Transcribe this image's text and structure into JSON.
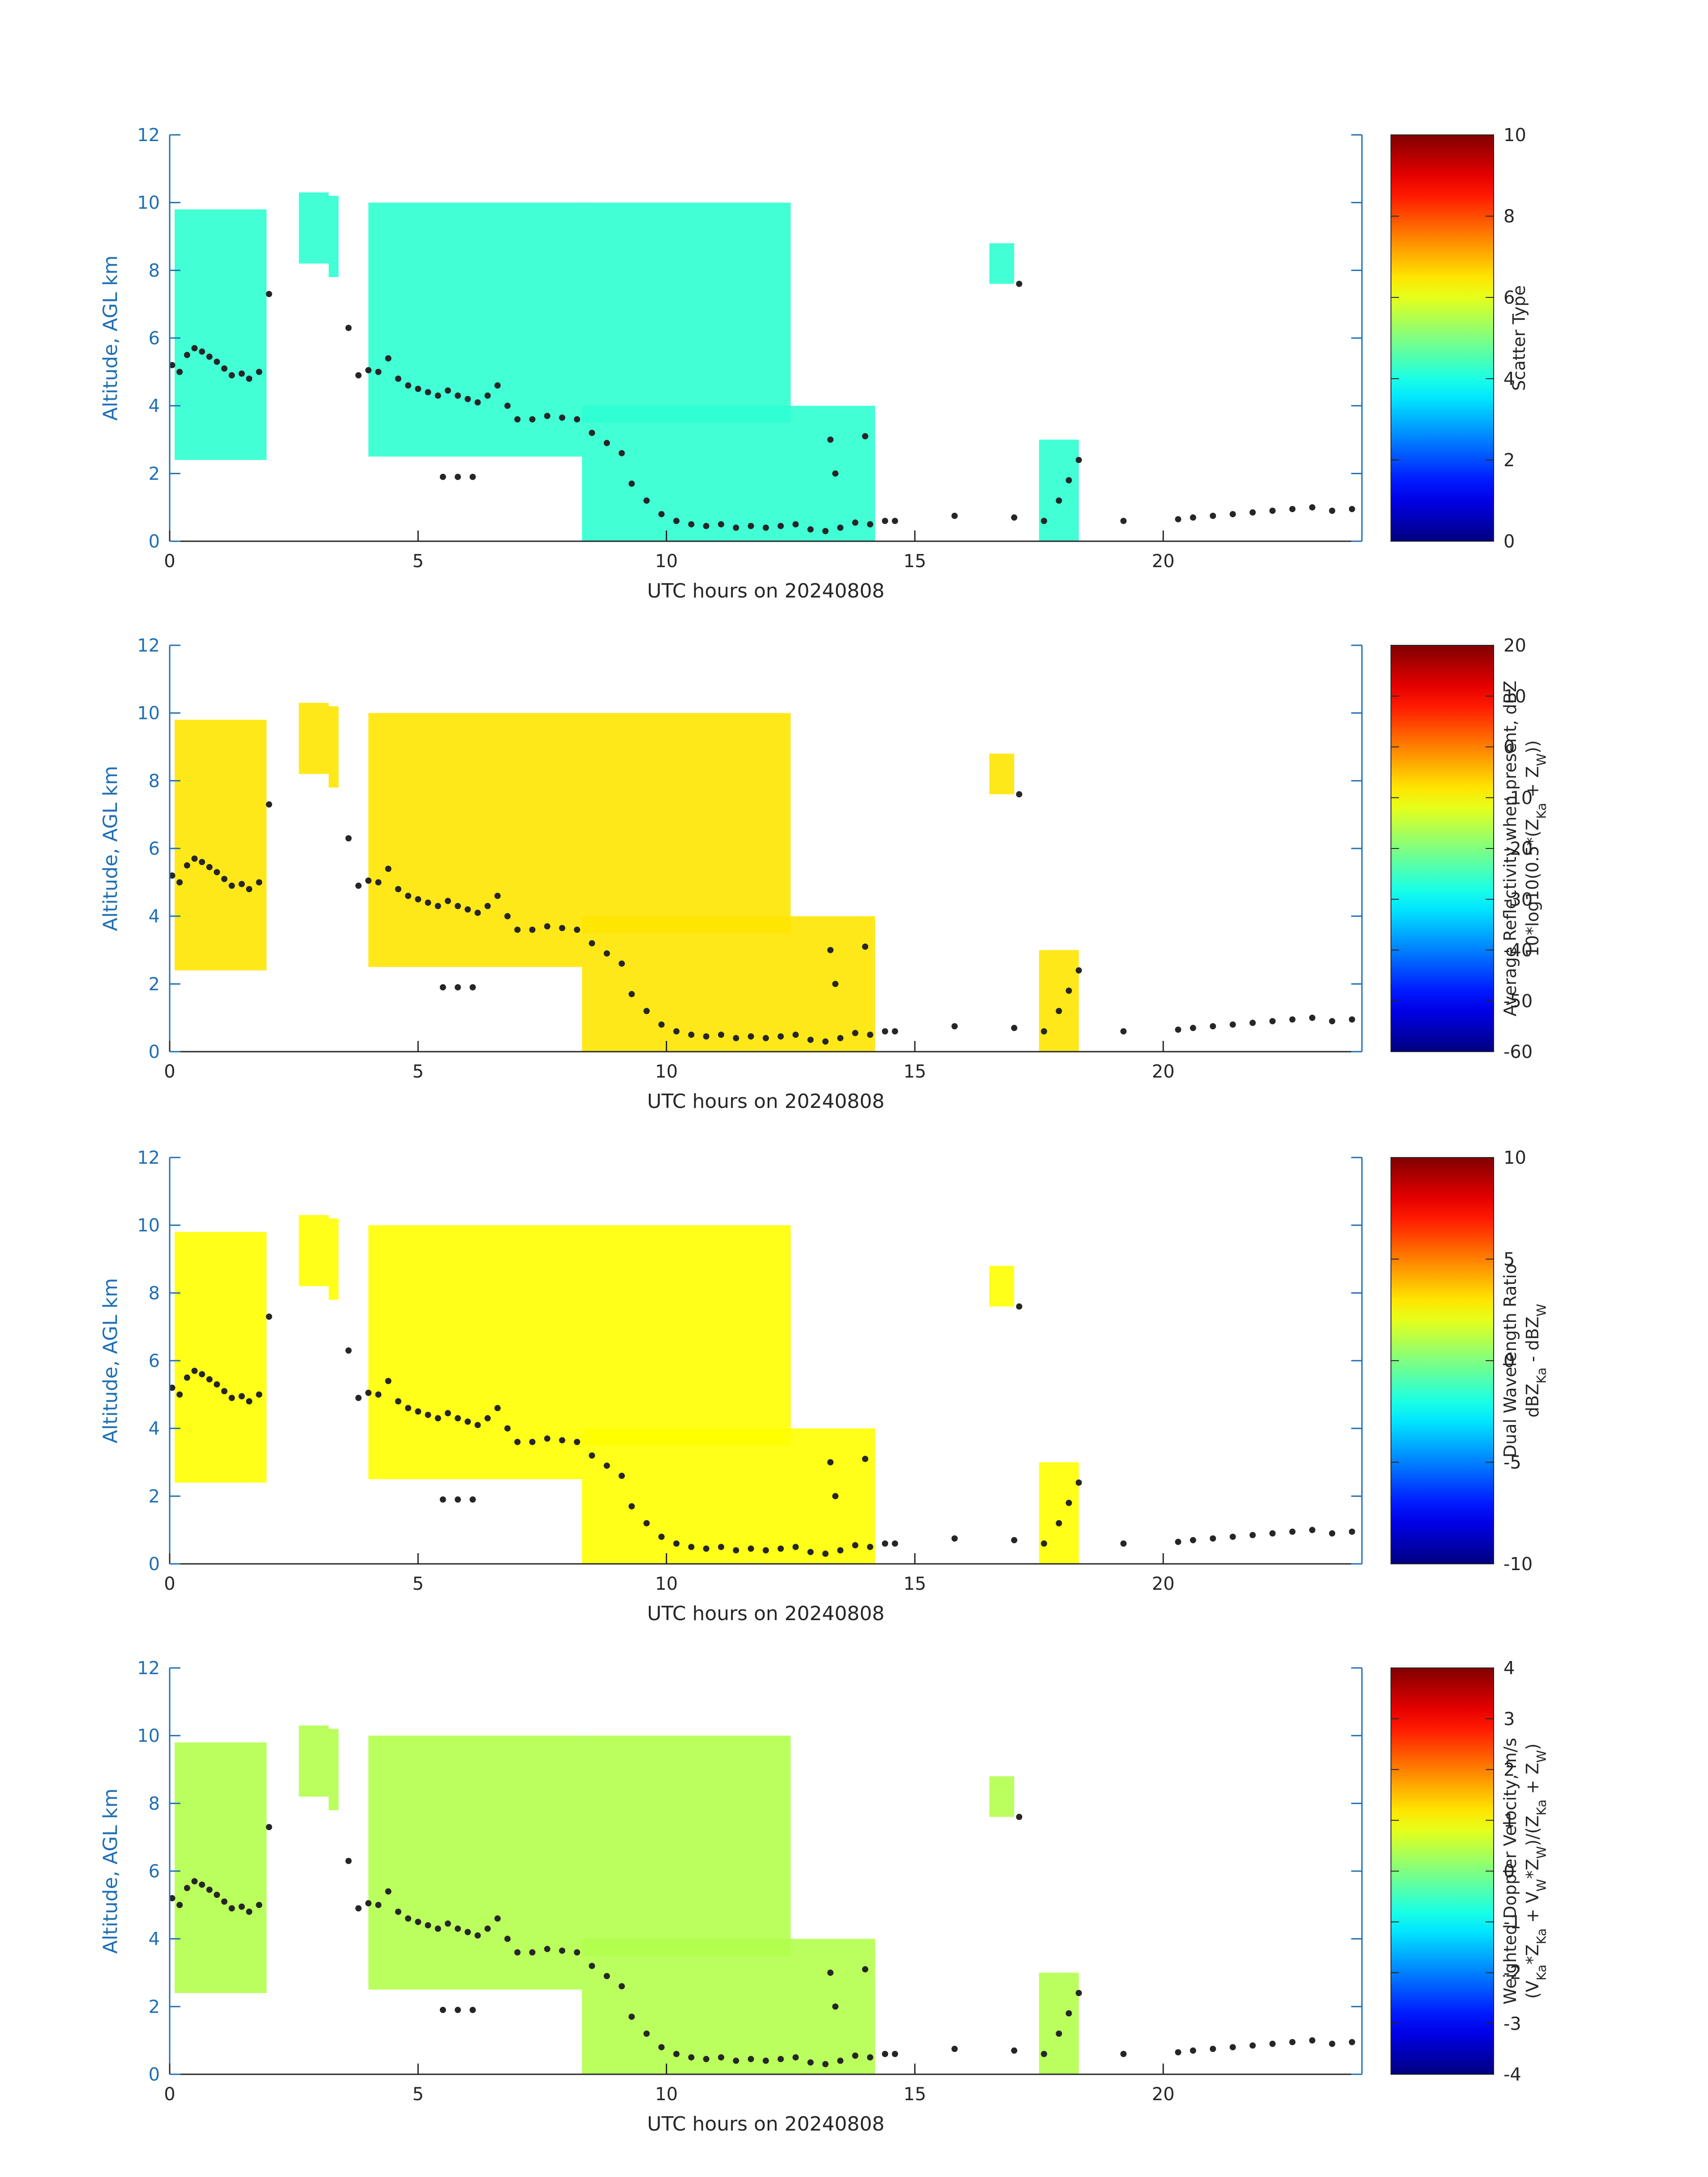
{
  "colors": {
    "axis": "#1f6fb4",
    "black": "#262626"
  },
  "chart_data": [
    {
      "type": "heatmap",
      "title": "",
      "xlabel": "UTC hours on 20240808",
      "ylabel": "Altitude, AGL km",
      "xlim": [
        0,
        24
      ],
      "ylim": [
        0,
        12
      ],
      "xticks": [
        "0",
        "5",
        "10",
        "15",
        "20"
      ],
      "yticks": [
        "0",
        "2",
        "4",
        "6",
        "8",
        "10",
        "12"
      ],
      "colorbar": {
        "label": "Scatter Type",
        "sublabel": "",
        "clim": [
          0,
          10
        ],
        "ticks": [
          "0",
          "2",
          "4",
          "6",
          "8",
          "10"
        ]
      },
      "colormap": "jet",
      "dominant_value": 4.2
    },
    {
      "type": "heatmap",
      "title": "",
      "xlabel": "UTC hours on 20240808",
      "ylabel": "Altitude, AGL km",
      "xlim": [
        0,
        24
      ],
      "ylim": [
        0,
        12
      ],
      "xticks": [
        "0",
        "5",
        "10",
        "15",
        "20"
      ],
      "yticks": [
        "0",
        "2",
        "4",
        "6",
        "8",
        "10",
        "12"
      ],
      "colorbar": {
        "label": "Average Reflectivity when present, dBZ",
        "sublabel": "10*log10(0.5*(Z_Ka + Z_W))",
        "clim": [
          -60,
          20
        ],
        "ticks": [
          "-60",
          "-50",
          "-40",
          "-30",
          "-20",
          "-10",
          "0",
          "10",
          "20"
        ]
      },
      "colormap": "jet",
      "dominant_value": -8
    },
    {
      "type": "heatmap",
      "title": "",
      "xlabel": "UTC hours on 20240808",
      "ylabel": "Altitude, AGL km",
      "xlim": [
        0,
        24
      ],
      "ylim": [
        0,
        12
      ],
      "xticks": [
        "0",
        "5",
        "10",
        "15",
        "20"
      ],
      "yticks": [
        "0",
        "2",
        "4",
        "6",
        "8",
        "10",
        "12"
      ],
      "colorbar": {
        "label": "Dual Wavelength Ratio",
        "sublabel": "dBZ_Ka - dBZ_W",
        "clim": [
          -10,
          10
        ],
        "ticks": [
          "-10",
          "-5",
          "0",
          "5",
          "10"
        ]
      },
      "colormap": "jet",
      "dominant_value": 2.5
    },
    {
      "type": "heatmap",
      "title": "",
      "xlabel": "UTC hours on 20240808",
      "ylabel": "Altitude, AGL km",
      "xlim": [
        0,
        24
      ],
      "ylim": [
        0,
        12
      ],
      "xticks": [
        "0",
        "5",
        "10",
        "15",
        "20"
      ],
      "yticks": [
        "0",
        "2",
        "4",
        "6",
        "8",
        "10",
        "12"
      ],
      "colorbar": {
        "label": "Weighted Doppler Velocity, m/s",
        "sublabel": "(V_Ka*Z_Ka + V_W*Z_W)/(Z_Ka + Z_W)",
        "clim": [
          -4,
          4
        ],
        "ticks": [
          "-4",
          "-3",
          "-2",
          "-1",
          "0",
          "1",
          "2",
          "3",
          "4"
        ]
      },
      "colormap": "jet",
      "dominant_value": 0.4
    }
  ],
  "cloud_regions": [
    {
      "x": [
        0.1,
        1.95
      ],
      "y": [
        2.4,
        9.8
      ]
    },
    {
      "x": [
        2.6,
        3.2
      ],
      "y": [
        8.2,
        10.3
      ]
    },
    {
      "x": [
        3.2,
        3.4
      ],
      "y": [
        7.8,
        10.2
      ]
    },
    {
      "x": [
        4.0,
        8.3
      ],
      "y": [
        2.5,
        10.0
      ]
    },
    {
      "x": [
        8.3,
        12.5
      ],
      "y": [
        3.5,
        10.0
      ]
    },
    {
      "x": [
        8.3,
        14.2
      ],
      "y": [
        0.0,
        4.0
      ]
    },
    {
      "x": [
        16.5,
        17.0
      ],
      "y": [
        7.6,
        8.8
      ]
    },
    {
      "x": [
        17.5,
        18.3
      ],
      "y": [
        0.0,
        3.0
      ]
    }
  ],
  "boundary_layer_points": [
    [
      0.05,
      5.2
    ],
    [
      0.2,
      5.0
    ],
    [
      0.35,
      5.5
    ],
    [
      0.5,
      5.7
    ],
    [
      0.65,
      5.6
    ],
    [
      0.8,
      5.45
    ],
    [
      0.95,
      5.3
    ],
    [
      1.1,
      5.1
    ],
    [
      1.25,
      4.9
    ],
    [
      1.45,
      4.95
    ],
    [
      1.6,
      4.8
    ],
    [
      1.8,
      5.0
    ],
    [
      2.0,
      7.3
    ],
    [
      3.6,
      6.3
    ],
    [
      3.8,
      4.9
    ],
    [
      4.0,
      5.05
    ],
    [
      4.2,
      5.0
    ],
    [
      4.4,
      5.4
    ],
    [
      4.6,
      4.8
    ],
    [
      4.8,
      4.6
    ],
    [
      5.0,
      4.5
    ],
    [
      5.2,
      4.4
    ],
    [
      5.4,
      4.3
    ],
    [
      5.6,
      4.45
    ],
    [
      5.8,
      4.3
    ],
    [
      6.0,
      4.2
    ],
    [
      6.2,
      4.1
    ],
    [
      6.4,
      4.3
    ],
    [
      6.6,
      4.6
    ],
    [
      6.8,
      4.0
    ],
    [
      7.0,
      3.6
    ],
    [
      7.3,
      3.6
    ],
    [
      7.6,
      3.7
    ],
    [
      7.9,
      3.65
    ],
    [
      8.2,
      3.6
    ],
    [
      8.5,
      3.2
    ],
    [
      8.8,
      2.9
    ],
    [
      9.1,
      2.6
    ],
    [
      9.3,
      1.7
    ],
    [
      9.6,
      1.2
    ],
    [
      9.9,
      0.8
    ],
    [
      10.2,
      0.6
    ],
    [
      10.5,
      0.5
    ],
    [
      10.8,
      0.45
    ],
    [
      11.1,
      0.5
    ],
    [
      11.4,
      0.4
    ],
    [
      11.7,
      0.45
    ],
    [
      12.0,
      0.4
    ],
    [
      12.3,
      0.45
    ],
    [
      12.6,
      0.5
    ],
    [
      12.9,
      0.35
    ],
    [
      13.2,
      0.3
    ],
    [
      13.5,
      0.4
    ],
    [
      13.8,
      0.55
    ],
    [
      14.1,
      0.5
    ],
    [
      14.4,
      0.6
    ],
    [
      14.6,
      0.6
    ],
    [
      13.4,
      2.0
    ],
    [
      13.3,
      3.0
    ],
    [
      14.0,
      3.1
    ],
    [
      15.8,
      0.75
    ],
    [
      17.1,
      7.6
    ],
    [
      17.0,
      0.7
    ],
    [
      17.6,
      0.6
    ],
    [
      17.9,
      1.2
    ],
    [
      18.1,
      1.8
    ],
    [
      18.3,
      2.4
    ],
    [
      19.2,
      0.6
    ],
    [
      20.3,
      0.65
    ],
    [
      20.6,
      0.7
    ],
    [
      21.0,
      0.75
    ],
    [
      21.4,
      0.8
    ],
    [
      21.8,
      0.85
    ],
    [
      22.2,
      0.9
    ],
    [
      22.6,
      0.95
    ],
    [
      23.0,
      1.0
    ],
    [
      23.4,
      0.9
    ],
    [
      23.8,
      0.95
    ],
    [
      5.5,
      1.9
    ],
    [
      5.8,
      1.9
    ],
    [
      6.1,
      1.9
    ]
  ]
}
